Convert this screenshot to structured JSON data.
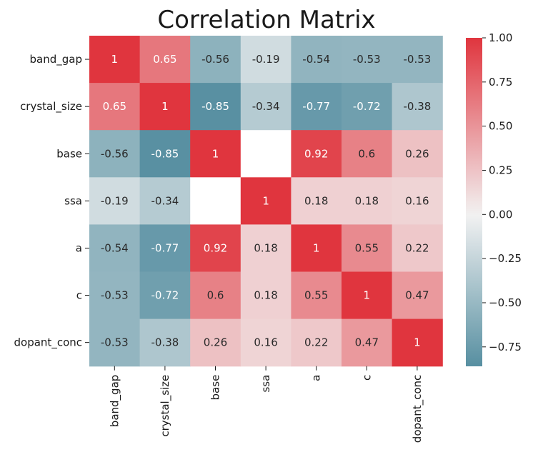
{
  "chart_data": {
    "type": "heatmap",
    "title": "Correlation Matrix",
    "xlabel": "",
    "ylabel": "",
    "variables": [
      "band_gap",
      "crystal_size",
      "base",
      "ssa",
      "a",
      "c",
      "dopant_conc"
    ],
    "matrix": [
      [
        1,
        0.65,
        -0.56,
        -0.19,
        -0.54,
        -0.53,
        -0.53
      ],
      [
        0.65,
        1,
        -0.85,
        -0.34,
        -0.77,
        -0.72,
        -0.38
      ],
      [
        -0.56,
        -0.85,
        1,
        null,
        0.92,
        0.6,
        0.26
      ],
      [
        -0.19,
        -0.34,
        null,
        1,
        0.18,
        0.18,
        0.16
      ],
      [
        -0.54,
        -0.77,
        0.92,
        0.18,
        1,
        0.55,
        0.22
      ],
      [
        -0.53,
        -0.72,
        0.6,
        0.18,
        0.55,
        1,
        0.47
      ],
      [
        -0.53,
        -0.38,
        0.26,
        0.16,
        0.22,
        0.47,
        1
      ]
    ],
    "cell_text": [
      [
        "1",
        "0.65",
        "-0.56",
        "-0.19",
        "-0.54",
        "-0.53",
        "-0.53"
      ],
      [
        "0.65",
        "1",
        "-0.85",
        "-0.34",
        "-0.77",
        "-0.72",
        "-0.38"
      ],
      [
        "-0.56",
        "-0.85",
        "1",
        "",
        "0.92",
        "0.6",
        "0.26"
      ],
      [
        "-0.19",
        "-0.34",
        "",
        "1",
        "0.18",
        "0.18",
        "0.16"
      ],
      [
        "-0.54",
        "-0.77",
        "0.92",
        "0.18",
        "1",
        "0.55",
        "0.22"
      ],
      [
        "-0.53",
        "-0.72",
        "0.6",
        "0.18",
        "0.55",
        "1",
        "0.47"
      ],
      [
        "-0.53",
        "-0.38",
        "0.26",
        "0.16",
        "0.22",
        "0.47",
        "1"
      ]
    ],
    "colorbar": {
      "vmin": -0.86,
      "vmax": 1.0,
      "ticks": [
        1.0,
        0.75,
        0.5,
        0.25,
        0.0,
        -0.25,
        -0.5,
        -0.75
      ],
      "tick_labels": [
        "1.00",
        "0.75",
        "0.50",
        "0.25",
        "0.00",
        "−0.25",
        "−0.50",
        "−0.75"
      ],
      "cmap": "diverging teal-white-red",
      "color_negative": "#3e7f94",
      "color_center": "#f2f2f2",
      "color_positive": "#e0353e"
    },
    "grid": false,
    "legend": "colorbar-right"
  }
}
